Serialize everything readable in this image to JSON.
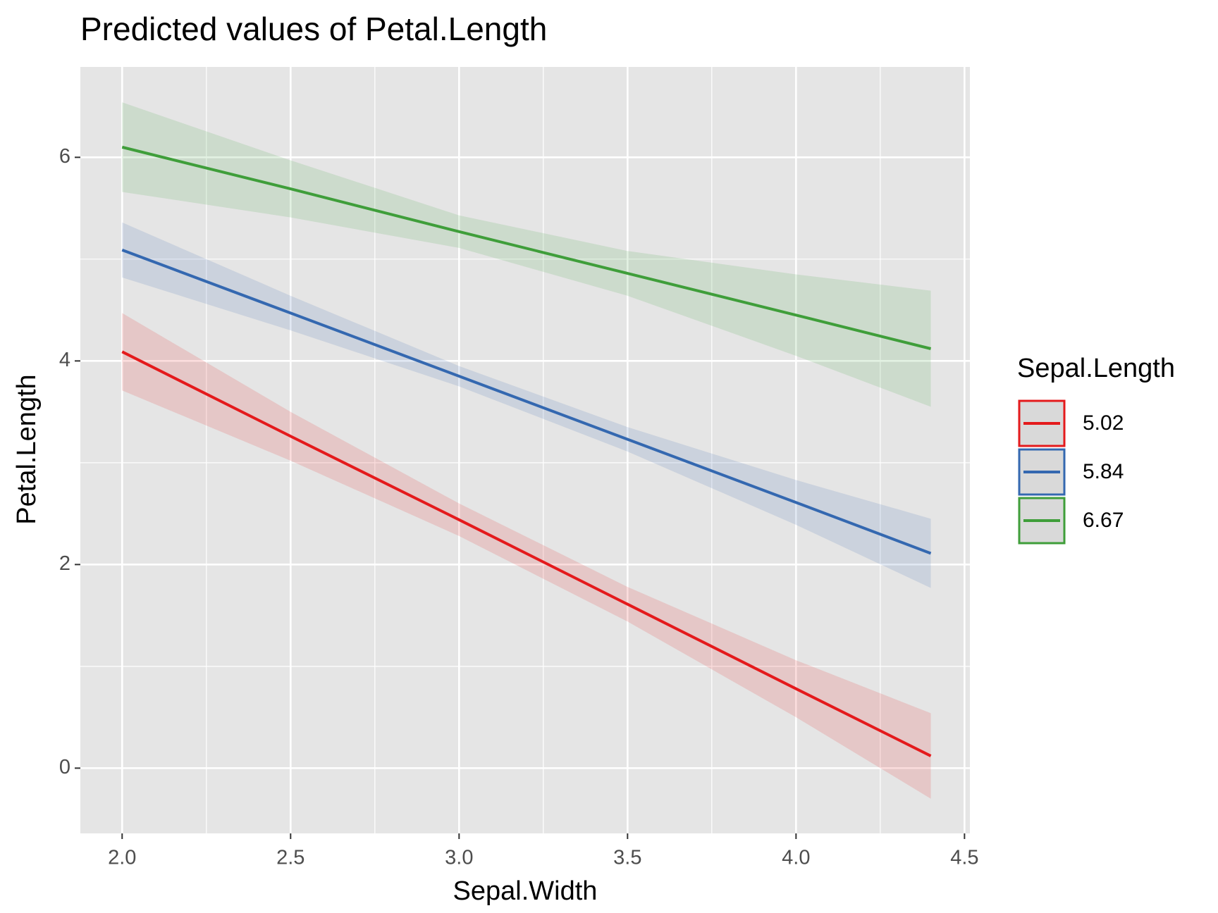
{
  "chart_data": {
    "type": "line",
    "title": "Predicted values of Petal.Length",
    "x_label": "Sepal.Width",
    "y_label": "Petal.Length",
    "legend_title": "Sepal.Length",
    "x": [
      2.0,
      2.5,
      3.0,
      3.5,
      4.0,
      4.4
    ],
    "series": [
      {
        "name": "5.02",
        "color": "#e41a1c",
        "values": [
          4.09,
          3.26,
          2.44,
          1.61,
          0.78,
          0.12
        ],
        "lower": [
          3.71,
          3.02,
          2.28,
          1.44,
          0.5,
          -0.3
        ],
        "upper": [
          4.47,
          3.5,
          2.6,
          1.78,
          1.06,
          0.54
        ]
      },
      {
        "name": "5.84",
        "color": "#3468b0",
        "values": [
          5.09,
          4.47,
          3.85,
          3.23,
          2.61,
          2.11
        ],
        "lower": [
          4.82,
          4.3,
          3.75,
          3.11,
          2.39,
          1.77
        ],
        "upper": [
          5.36,
          4.64,
          3.95,
          3.35,
          2.83,
          2.45
        ]
      },
      {
        "name": "6.67",
        "color": "#3f9e3a",
        "values": [
          6.1,
          5.69,
          5.27,
          4.86,
          4.45,
          4.12
        ],
        "lower": [
          5.66,
          5.41,
          5.11,
          4.64,
          4.05,
          3.55
        ],
        "upper": [
          6.54,
          5.97,
          5.43,
          5.08,
          4.85,
          4.69
        ]
      }
    ],
    "xlim": [
      1.876,
      4.516
    ],
    "ylim": [
      -0.641,
      6.888
    ],
    "xticks": [
      {
        "value": 2.0,
        "label": "2.0"
      },
      2.5,
      {
        "value": 3.0,
        "label": "3.0"
      },
      3.5,
      {
        "value": 4.0,
        "label": "4.0"
      },
      4.5
    ],
    "yticks": [
      0,
      2,
      4,
      6
    ],
    "x_minor_grid": [
      2.25,
      2.75,
      3.25,
      3.75,
      4.25
    ],
    "y_minor_grid": [
      1,
      3,
      5
    ],
    "grid": true,
    "legend_position": "right"
  }
}
